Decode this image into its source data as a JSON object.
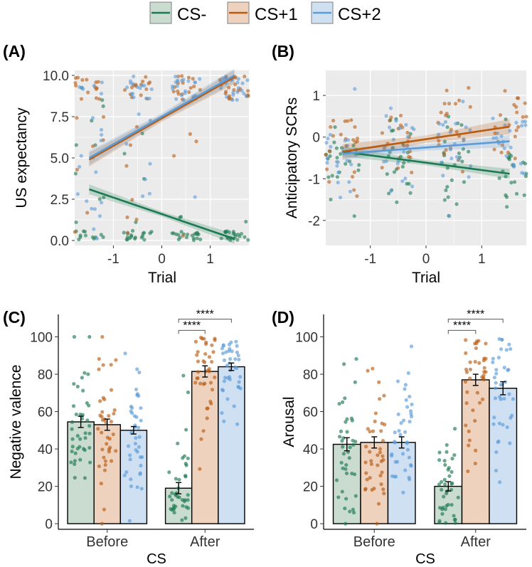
{
  "colors": {
    "cs_minus": "#1b7a52",
    "cs_plus1": "#b85c14",
    "cs_plus2": "#5b9bd8",
    "panel_bg": "#ebebeb",
    "grid": "#ffffff"
  },
  "legend": {
    "items": [
      {
        "label": "CS-",
        "color": "#1b7a52",
        "fill": "#c9dccf"
      },
      {
        "label": "CS+1",
        "color": "#b85c14",
        "fill": "#eed2bd"
      },
      {
        "label": "CS+2",
        "color": "#5b9bd8",
        "fill": "#cfe0f3"
      }
    ]
  },
  "chart_data": [
    {
      "panel": "(A)",
      "type": "scatter",
      "xlabel": "Trial",
      "ylabel": "US expectancy",
      "xlim": [
        -1.8,
        1.8
      ],
      "ylim": [
        -0.3,
        10.3
      ],
      "xticks": [
        -1,
        0,
        1
      ],
      "xtick_labels": [
        "-1",
        "0",
        "1"
      ],
      "yticks": [
        0,
        2.5,
        5,
        7.5,
        10
      ],
      "ytick_labels": [
        "0.0",
        "2.5",
        "5.0",
        "7.5",
        "10.0"
      ],
      "trial_positions": [
        -1.5,
        -0.5,
        0.5,
        1.5
      ],
      "series": [
        {
          "name": "CS-",
          "line": [
            [
              -1.5,
              3.1
            ],
            [
              1.5,
              0.1
            ]
          ],
          "band": 0.25
        },
        {
          "name": "CS+1",
          "line": [
            [
              -1.5,
              4.9
            ],
            [
              1.5,
              9.9
            ]
          ],
          "band": 0.35
        },
        {
          "name": "CS+2",
          "line": [
            [
              -1.5,
              5.0
            ],
            [
              1.5,
              10.0
            ]
          ],
          "band": 0.35
        }
      ]
    },
    {
      "panel": "(B)",
      "type": "scatter",
      "xlabel": "Trial",
      "ylabel": "Anticipatory SCRs",
      "xlim": [
        -1.8,
        1.8
      ],
      "ylim": [
        -2.6,
        1.6
      ],
      "xticks": [
        -1,
        0,
        1
      ],
      "xtick_labels": [
        "-1",
        "0",
        "1"
      ],
      "yticks": [
        -2,
        -1,
        0,
        1
      ],
      "ytick_labels": [
        "-2",
        "-1",
        "0",
        "1"
      ],
      "trial_positions": [
        -1.5,
        -0.5,
        0.5,
        1.5
      ],
      "series": [
        {
          "name": "CS-",
          "line": [
            [
              -1.5,
              -0.35
            ],
            [
              1.5,
              -0.88
            ]
          ],
          "band": 0.1
        },
        {
          "name": "CS+1",
          "line": [
            [
              -1.5,
              -0.35
            ],
            [
              1.5,
              0.25
            ]
          ],
          "band": 0.15
        },
        {
          "name": "CS+2",
          "line": [
            [
              -1.5,
              -0.4
            ],
            [
              1.5,
              -0.1
            ]
          ],
          "band": 0.12
        }
      ]
    },
    {
      "panel": "(C)",
      "type": "bar",
      "xlabel": "CS",
      "ylabel": "Negative valence",
      "categories": [
        "Before",
        "After"
      ],
      "ylim": [
        -3,
        112
      ],
      "yticks": [
        0,
        20,
        40,
        60,
        80,
        100
      ],
      "ytick_labels": [
        "0",
        "20",
        "40",
        "60",
        "80",
        "100"
      ],
      "series": [
        {
          "name": "CS-",
          "values": [
            54.5,
            19
          ],
          "errors": [
            3,
            3
          ]
        },
        {
          "name": "CS+1",
          "values": [
            53,
            81.5
          ],
          "errors": [
            3,
            3
          ]
        },
        {
          "name": "CS+2",
          "values": [
            50,
            84
          ],
          "errors": [
            2,
            2
          ]
        }
      ],
      "significance": [
        {
          "group": "After",
          "from": "CS-",
          "to": "CS+1",
          "label": "****"
        },
        {
          "group": "After",
          "from": "CS-",
          "to": "CS+2",
          "label": "****"
        }
      ]
    },
    {
      "panel": "(D)",
      "type": "bar",
      "xlabel": "CS",
      "ylabel": "Arousal",
      "categories": [
        "Before",
        "After"
      ],
      "ylim": [
        -3,
        112
      ],
      "yticks": [
        0,
        20,
        40,
        60,
        80,
        100
      ],
      "ytick_labels": [
        "0",
        "20",
        "40",
        "60",
        "80",
        "100"
      ],
      "series": [
        {
          "name": "CS-",
          "values": [
            42.5,
            20
          ],
          "errors": [
            3.5,
            2.5
          ]
        },
        {
          "name": "CS+1",
          "values": [
            43.5,
            77
          ],
          "errors": [
            3,
            3
          ]
        },
        {
          "name": "CS+2",
          "values": [
            43.5,
            72.5
          ],
          "errors": [
            3,
            3.5
          ]
        }
      ],
      "significance": [
        {
          "group": "After",
          "from": "CS-",
          "to": "CS+1",
          "label": "****"
        },
        {
          "group": "After",
          "from": "CS-",
          "to": "CS+2",
          "label": "****"
        }
      ]
    }
  ]
}
